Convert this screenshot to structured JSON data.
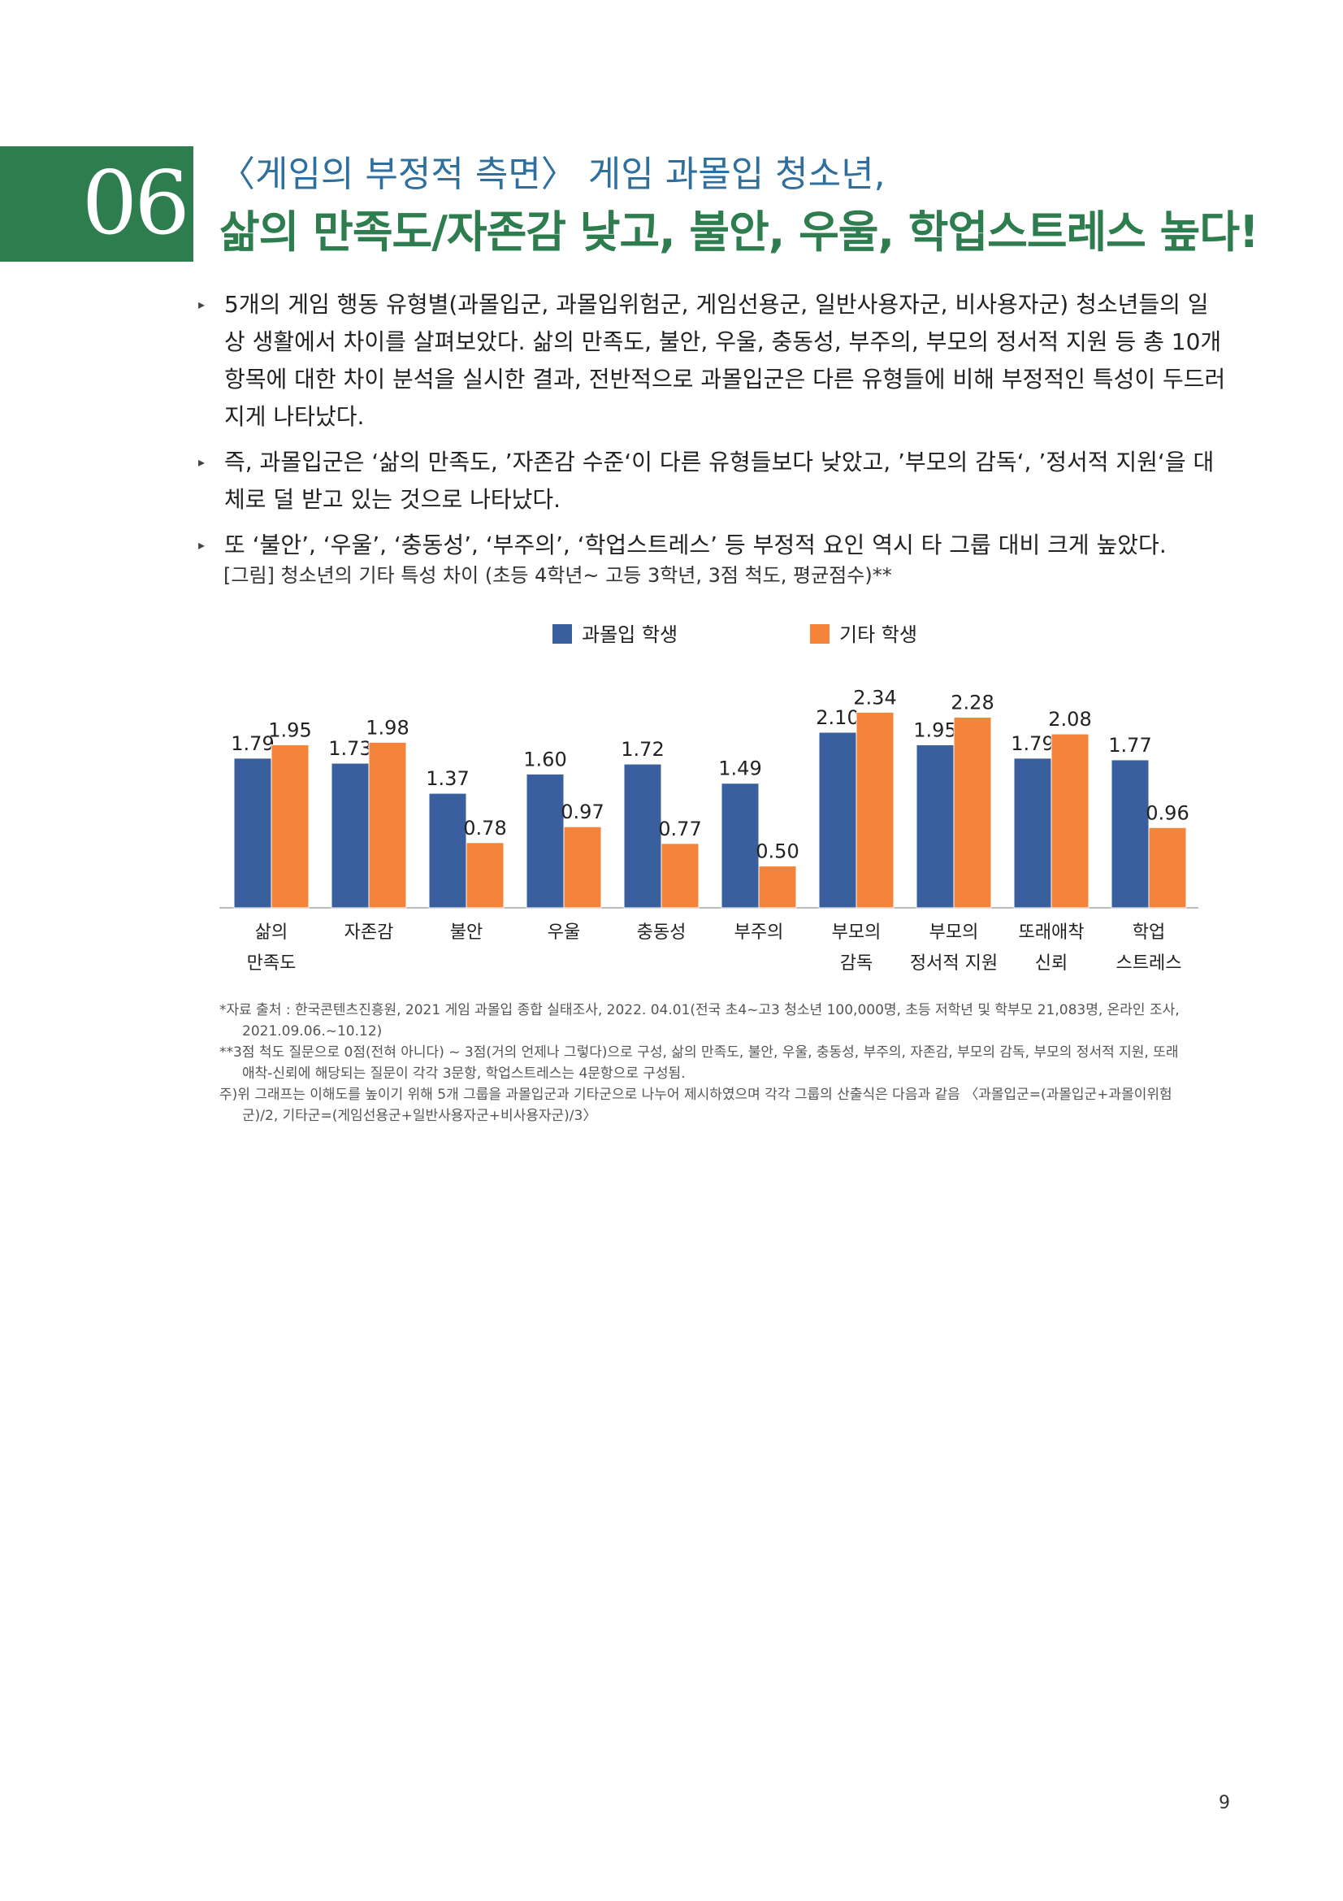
{
  "section": {
    "number": "06"
  },
  "title": {
    "line1": "〈게임의 부정적 측면〉 게임 과몰입 청소년,",
    "line2": "삶의 만족도/자존감 낮고, 불안, 우울, 학업스트레스 높다!"
  },
  "bullets": [
    "5개의 게임 행동 유형별(과몰입군, 과몰입위험군, 게임선용군, 일반사용자군, 비사용자군) 청소년들의 일상 생활에서 차이를 살펴보았다. 삶의 만족도, 불안, 우울, 충동성, 부주의, 부모의 정서적 지원 등 총 10개 항목에 대한 차이 분석을 실시한 결과, 전반적으로 과몰입군은 다른 유형들에 비해 부정적인 특성이 두드러지게 나타났다.",
    "즉, 과몰입군은 ‘삶의 만족도, ’자존감 수준‘이 다른 유형들보다 낮았고, ’부모의 감독‘, ’정서적 지원‘을 대체로 덜 받고 있는 것으로 나타났다.",
    "또 ‘불안’, ‘우울’, ‘충동성’, ‘부주의’, ‘학업스트레스’ 등 부정적 요인 역시 타 그룹 대비 크게 높았다."
  ],
  "figure_caption": "[그림] 청소년의 기타 특성 차이 (초등 4학년~ 고등 3학년, 3점 척도, 평균점수)**",
  "chart_data": {
    "type": "bar",
    "categories": [
      [
        "삶의",
        "만족도"
      ],
      [
        "자존감"
      ],
      [
        "불안"
      ],
      [
        "우울"
      ],
      [
        "충동성"
      ],
      [
        "부주의"
      ],
      [
        "부모의",
        "감독"
      ],
      [
        "부모의",
        "정서적 지원"
      ],
      [
        "또래애착",
        "신뢰"
      ],
      [
        "학업",
        "스트레스"
      ]
    ],
    "series": [
      {
        "name": "과몰입 학생",
        "color": "#3a5f9e",
        "values": [
          1.79,
          1.73,
          1.37,
          1.6,
          1.72,
          1.49,
          2.1,
          1.95,
          1.79,
          1.77
        ]
      },
      {
        "name": "기타 학생",
        "color": "#f5843a",
        "values": [
          1.95,
          1.98,
          0.78,
          0.97,
          0.77,
          0.5,
          2.34,
          2.28,
          2.08,
          0.96
        ]
      }
    ],
    "ylim": [
      0,
      2.45
    ],
    "legend_position": "top",
    "grid": false
  },
  "notes": [
    "*자료 출처 : 한국콘텐츠진흥원, 2021 게임 과몰입 종합 실태조사, 2022. 04.01(전국 초4~고3 청소년 100,000명, 초등 저학년 및 학부모 21,083명, 온라인 조사,",
    "2021.09.06.~10.12)",
    "**3점 척도 질문으로 0점(전혀 아니다) ~ 3점(거의 언제나 그렇다)으로 구성, 삶의 만족도, 불안, 우울, 충동성, 부주의, 자존감, 부모의 감독, 부모의 정서적 지원, 또래",
    "애착-신뢰에 해당되는 질문이 각각 3문항, 학업스트레스는 4문항으로 구성됨.",
    "주)위 그래프는 이해도를 높이기 위해 5개 그룹을 과몰입군과 기타군으로 나누어 제시하였으며 각각 그룹의 산출식은 다음과 같음 〈과몰입군=(과몰입군+과몰이위험",
    "군)/2, 기타군=(게임선용군+일반사용자군+비사용자군)/3〉"
  ],
  "page_number": "9"
}
